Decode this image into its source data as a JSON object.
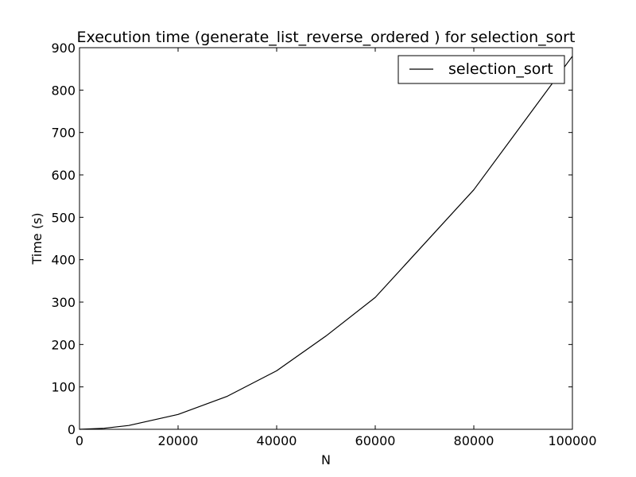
{
  "chart_data": {
    "type": "line",
    "title": "Execution time (generate_list_reverse_ordered ) for selection_sort",
    "xlabel": "N",
    "ylabel": "Time (s)",
    "xlim": [
      0,
      100000
    ],
    "ylim": [
      0,
      900
    ],
    "xticks": [
      0,
      20000,
      40000,
      60000,
      80000,
      100000
    ],
    "xtick_labels": [
      "0",
      "20000",
      "40000",
      "60000",
      "80000",
      "100000"
    ],
    "yticks": [
      0,
      100,
      200,
      300,
      400,
      500,
      600,
      700,
      800,
      900
    ],
    "ytick_labels": [
      "0",
      "100",
      "200",
      "300",
      "400",
      "500",
      "600",
      "700",
      "800",
      "900"
    ],
    "grid": false,
    "legend_position": "top-right",
    "series": [
      {
        "name": "selection_sort",
        "color": "#000000",
        "x": [
          0,
          5000,
          10000,
          20000,
          30000,
          40000,
          50000,
          60000,
          80000,
          100000
        ],
        "y": [
          0,
          2.5,
          9,
          35,
          78,
          138,
          220,
          311,
          565,
          880
        ]
      }
    ]
  }
}
